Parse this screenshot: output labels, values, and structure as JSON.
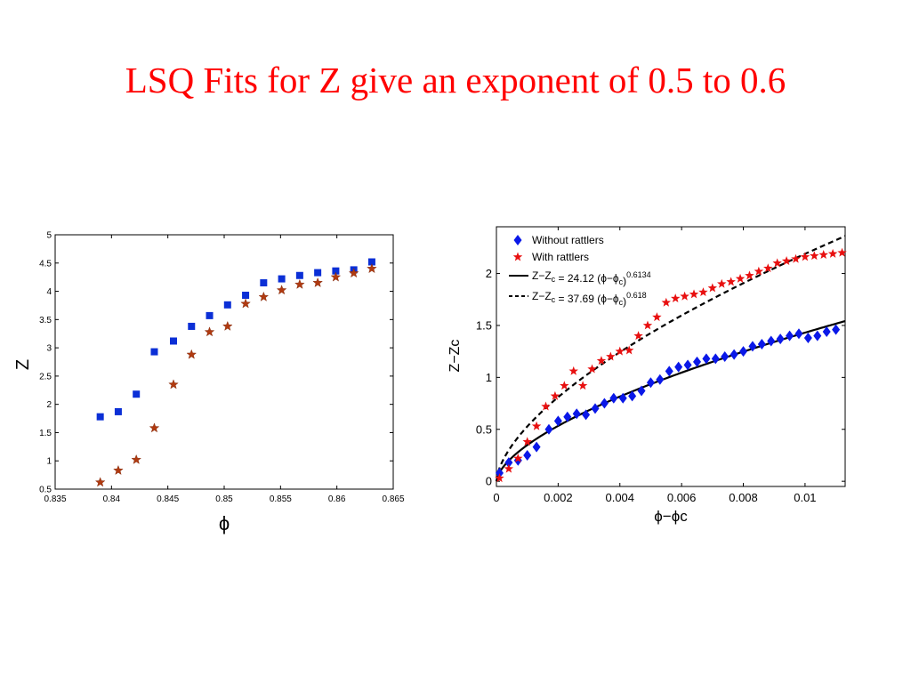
{
  "slide": {
    "title": "LSQ Fits for Z give an exponent of 0.5 to 0.6"
  },
  "chart_data": [
    {
      "type": "scatter",
      "title": "",
      "xlabel": "ϕ",
      "ylabel": "Z",
      "xlim": [
        0.835,
        0.865
      ],
      "ylim": [
        0.5,
        5
      ],
      "xticks": [
        "0.835",
        "0.84",
        "0.845",
        "0.85",
        "0.855",
        "0.86",
        "0.865"
      ],
      "xtick_values": [
        0.835,
        0.84,
        0.845,
        0.85,
        0.855,
        0.86,
        0.865
      ],
      "yticks": [
        "0.5",
        "1",
        "1.5",
        "2",
        "2.5",
        "3",
        "3.5",
        "4",
        "4.5",
        "5"
      ],
      "ytick_values": [
        0.5,
        1,
        1.5,
        2,
        2.5,
        3,
        3.5,
        4,
        4.5,
        5
      ],
      "grid": false,
      "colors": {
        "squares": "#0b2fd6",
        "stars": "#b03a10"
      },
      "series": [
        {
          "marker": "square",
          "x": [
            0.839,
            0.8406,
            0.8422,
            0.8438,
            0.8455,
            0.8471,
            0.8487,
            0.8503,
            0.8519,
            0.8535,
            0.8551,
            0.8567,
            0.8583,
            0.8599,
            0.8615,
            0.8631
          ],
          "y": [
            1.78,
            1.87,
            2.18,
            2.93,
            3.12,
            3.38,
            3.57,
            3.76,
            3.93,
            4.15,
            4.22,
            4.28,
            4.33,
            4.36,
            4.38,
            4.52
          ]
        },
        {
          "marker": "star",
          "x": [
            0.839,
            0.8406,
            0.8422,
            0.8438,
            0.8455,
            0.8471,
            0.8487,
            0.8503,
            0.8519,
            0.8535,
            0.8551,
            0.8567,
            0.8583,
            0.8599,
            0.8615,
            0.8631
          ],
          "y": [
            0.62,
            0.83,
            1.02,
            1.58,
            2.35,
            2.88,
            3.28,
            3.38,
            3.78,
            3.9,
            4.02,
            4.12,
            4.15,
            4.25,
            4.32,
            4.4
          ]
        }
      ]
    },
    {
      "type": "scatter",
      "title": "",
      "xlabel": "ϕ−ϕc",
      "ylabel": "Z−Zc",
      "xlim": [
        0,
        0.0113
      ],
      "ylim": [
        -0.05,
        2.45
      ],
      "xticks": [
        "0",
        "0.002",
        "0.004",
        "0.006",
        "0.008",
        "0.01"
      ],
      "xtick_values": [
        0,
        0.002,
        0.004,
        0.006,
        0.008,
        0.01
      ],
      "yticks": [
        "0",
        "0.5",
        "1",
        "1.5",
        "2"
      ],
      "ytick_values": [
        0,
        0.5,
        1,
        1.5,
        2
      ],
      "grid": false,
      "legend_position": "top-left",
      "colors": {
        "diamonds": "#0a18e8",
        "stars": "#e81010",
        "fit": "#000000"
      },
      "legend": [
        {
          "marker": "diamond",
          "label": "Without rattlers"
        },
        {
          "marker": "star",
          "label": "With rattlers"
        },
        {
          "marker": "solid-line",
          "label_main": "Z−Z",
          "label_sub": "c",
          "label_eq": " = 24.12 (ϕ−ϕ",
          "label_eq_sub": "c",
          "label_eq_close": ")",
          "label_exp": "0.6134"
        },
        {
          "marker": "dashed-line",
          "label_main": "Z−Z",
          "label_sub": "c",
          "label_eq": " = 37.69 (ϕ−ϕ",
          "label_eq_sub": "c",
          "label_eq_close": ")",
          "label_exp": "0.618"
        }
      ],
      "fits": [
        {
          "name": "solid",
          "coefficient": 24.12,
          "exponent": 0.6134
        },
        {
          "name": "dashed",
          "coefficient": 37.69,
          "exponent": 0.618
        }
      ],
      "series": [
        {
          "name": "Without rattlers",
          "marker": "diamond",
          "x": [
            0.0001,
            0.0004,
            0.0007,
            0.001,
            0.0013,
            0.0017,
            0.002,
            0.0023,
            0.0026,
            0.0029,
            0.0032,
            0.0035,
            0.0038,
            0.0041,
            0.0044,
            0.0047,
            0.005,
            0.0053,
            0.0056,
            0.0059,
            0.0062,
            0.0065,
            0.0068,
            0.0071,
            0.0074,
            0.0077,
            0.008,
            0.0083,
            0.0086,
            0.0089,
            0.0092,
            0.0095,
            0.0098,
            0.0101,
            0.0104,
            0.0107,
            0.011
          ],
          "y": [
            0.08,
            0.18,
            0.2,
            0.25,
            0.33,
            0.5,
            0.58,
            0.62,
            0.65,
            0.64,
            0.7,
            0.75,
            0.8,
            0.8,
            0.82,
            0.87,
            0.95,
            0.98,
            1.06,
            1.1,
            1.12,
            1.15,
            1.18,
            1.18,
            1.2,
            1.22,
            1.25,
            1.3,
            1.32,
            1.35,
            1.37,
            1.4,
            1.42,
            1.38,
            1.4,
            1.44,
            1.46
          ]
        },
        {
          "name": "With rattlers",
          "marker": "star",
          "x": [
            0.0001,
            0.0004,
            0.0007,
            0.001,
            0.0013,
            0.0016,
            0.0019,
            0.0022,
            0.0025,
            0.0028,
            0.0031,
            0.0034,
            0.0037,
            0.004,
            0.0043,
            0.0046,
            0.0049,
            0.0052,
            0.0055,
            0.0058,
            0.0061,
            0.0064,
            0.0067,
            0.007,
            0.0073,
            0.0076,
            0.0079,
            0.0082,
            0.0085,
            0.0088,
            0.0091,
            0.0094,
            0.0097,
            0.01,
            0.0103,
            0.0106,
            0.0109,
            0.0112
          ],
          "y": [
            0.03,
            0.12,
            0.22,
            0.38,
            0.53,
            0.72,
            0.82,
            0.92,
            1.06,
            0.92,
            1.08,
            1.16,
            1.2,
            1.25,
            1.26,
            1.4,
            1.5,
            1.58,
            1.72,
            1.76,
            1.78,
            1.8,
            1.82,
            1.86,
            1.9,
            1.92,
            1.95,
            1.98,
            2.02,
            2.05,
            2.1,
            2.12,
            2.14,
            2.16,
            2.17,
            2.18,
            2.19,
            2.2
          ]
        }
      ]
    }
  ]
}
